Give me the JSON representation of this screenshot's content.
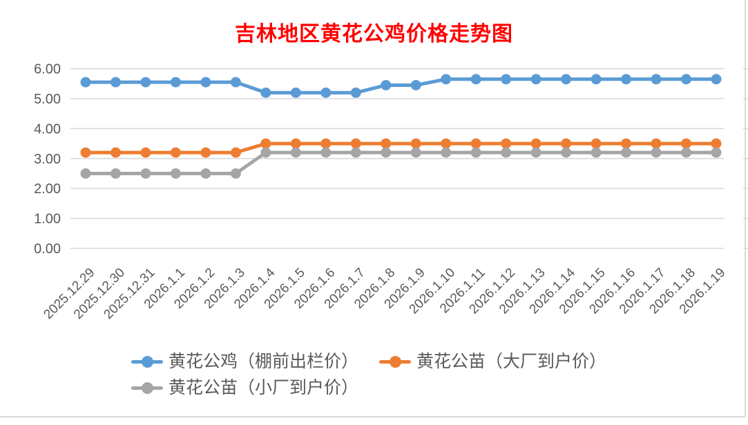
{
  "title": {
    "text": "吉林地区黄花公鸡价格走势图",
    "color": "#FF0000"
  },
  "chart_data": {
    "type": "line",
    "title": "吉林地区黄花公鸡价格走势图",
    "categories": [
      "2025.12.29",
      "2025.12.30",
      "2025.12.31",
      "2026.1.1",
      "2026.1.2",
      "2026.1.3",
      "2026.1.4",
      "2026.1.5",
      "2026.1.6",
      "2026.1.7",
      "2026.1.8",
      "2026.1.9",
      "2026.1.10",
      "2026.1.11",
      "2026.1.12",
      "2026.1.13",
      "2026.1.14",
      "2026.1.15",
      "2026.1.16",
      "2026.1.17",
      "2026.1.18",
      "2026.1.19"
    ],
    "series": [
      {
        "name": "黄花公鸡（棚前出栏价）",
        "color": "#5B9BD5",
        "values": [
          5.55,
          5.55,
          5.55,
          5.55,
          5.55,
          5.55,
          5.2,
          5.2,
          5.2,
          5.2,
          5.45,
          5.45,
          5.65,
          5.65,
          5.65,
          5.65,
          5.65,
          5.65,
          5.65,
          5.65,
          5.65,
          5.65
        ]
      },
      {
        "name": "黄花公苗（大厂到户价）",
        "color": "#ED7D31",
        "values": [
          3.2,
          3.2,
          3.2,
          3.2,
          3.2,
          3.2,
          3.5,
          3.5,
          3.5,
          3.5,
          3.5,
          3.5,
          3.5,
          3.5,
          3.5,
          3.5,
          3.5,
          3.5,
          3.5,
          3.5,
          3.5,
          3.5
        ]
      },
      {
        "name": "黄花公苗（小厂到户价）",
        "color": "#A5A5A5",
        "values": [
          2.5,
          2.5,
          2.5,
          2.5,
          2.5,
          2.5,
          3.2,
          3.2,
          3.2,
          3.2,
          3.2,
          3.2,
          3.2,
          3.2,
          3.2,
          3.2,
          3.2,
          3.2,
          3.2,
          3.2,
          3.2,
          3.2
        ]
      }
    ],
    "xlabel": "",
    "ylabel": "",
    "ylim": [
      0,
      6
    ],
    "y_ticks": [
      "0.00",
      "1.00",
      "2.00",
      "3.00",
      "4.00",
      "5.00",
      "6.00"
    ],
    "grid": true,
    "legend_position": "bottom",
    "colors": {
      "axis_text": "#595959",
      "grid": "#D9D9D9",
      "border": "#D9D9D9",
      "background": "#FFFFFF"
    }
  }
}
